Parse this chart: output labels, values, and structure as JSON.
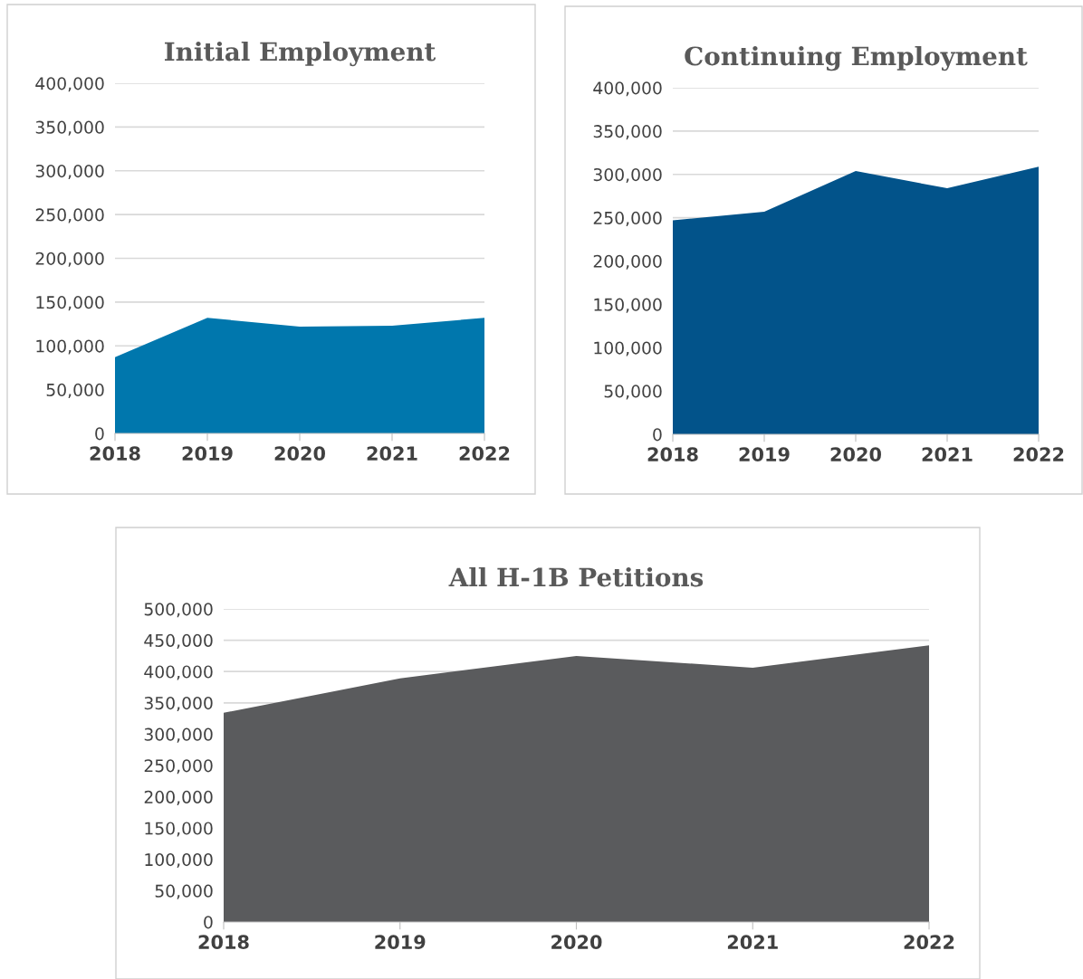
{
  "chart_data": [
    {
      "type": "area",
      "title": "Initial Employment",
      "categories": [
        "2018",
        "2019",
        "2020",
        "2021",
        "2022"
      ],
      "series": [
        {
          "color": "#0077ad",
          "values": [
            87000,
            132000,
            122000,
            123000,
            132000
          ]
        }
      ],
      "ylim": [
        0,
        400000
      ],
      "yticks": [
        {
          "value": 0,
          "label": "0"
        },
        {
          "value": 50000,
          "label": "50,000"
        },
        {
          "value": 100000,
          "label": "100,000"
        },
        {
          "value": 150000,
          "label": "150,000"
        },
        {
          "value": 200000,
          "label": "200,000"
        },
        {
          "value": 250000,
          "label": "250,000"
        },
        {
          "value": 300000,
          "label": "300,000"
        },
        {
          "value": 350000,
          "label": "350,000"
        },
        {
          "value": 400000,
          "label": "400,000"
        }
      ],
      "grid": "y",
      "legend": false
    },
    {
      "type": "area",
      "title": "Continuing Employment",
      "categories": [
        "2018",
        "2019",
        "2020",
        "2021",
        "2022"
      ],
      "series": [
        {
          "color": "#02538a",
          "values": [
            247000,
            257000,
            304000,
            284000,
            309000
          ]
        }
      ],
      "ylim": [
        0,
        400000
      ],
      "yticks": [
        {
          "value": 0,
          "label": "0"
        },
        {
          "value": 50000,
          "label": "50,000"
        },
        {
          "value": 100000,
          "label": "100,000"
        },
        {
          "value": 150000,
          "label": "150,000"
        },
        {
          "value": 200000,
          "label": "200,000"
        },
        {
          "value": 250000,
          "label": "250,000"
        },
        {
          "value": 300000,
          "label": "300,000"
        },
        {
          "value": 350000,
          "label": "350,000"
        },
        {
          "value": 400000,
          "label": "400,000"
        }
      ],
      "grid": "y",
      "legend": false
    },
    {
      "type": "area",
      "title": "All H-1B Petitions",
      "categories": [
        "2018",
        "2019",
        "2020",
        "2021",
        "2022"
      ],
      "series": [
        {
          "color": "#5a5b5d",
          "values": [
            334000,
            389000,
            425000,
            406000,
            442000
          ]
        }
      ],
      "ylim": [
        0,
        500000
      ],
      "yticks": [
        {
          "value": 0,
          "label": "0"
        },
        {
          "value": 50000,
          "label": "50,000"
        },
        {
          "value": 100000,
          "label": "100,000"
        },
        {
          "value": 150000,
          "label": "150,000"
        },
        {
          "value": 200000,
          "label": "200,000"
        },
        {
          "value": 250000,
          "label": "250,000"
        },
        {
          "value": 300000,
          "label": "300,000"
        },
        {
          "value": 350000,
          "label": "350,000"
        },
        {
          "value": 400000,
          "label": "400,000"
        },
        {
          "value": 450000,
          "label": "450,000"
        },
        {
          "value": 500000,
          "label": "500,000"
        }
      ],
      "grid": "y",
      "legend": false
    }
  ]
}
